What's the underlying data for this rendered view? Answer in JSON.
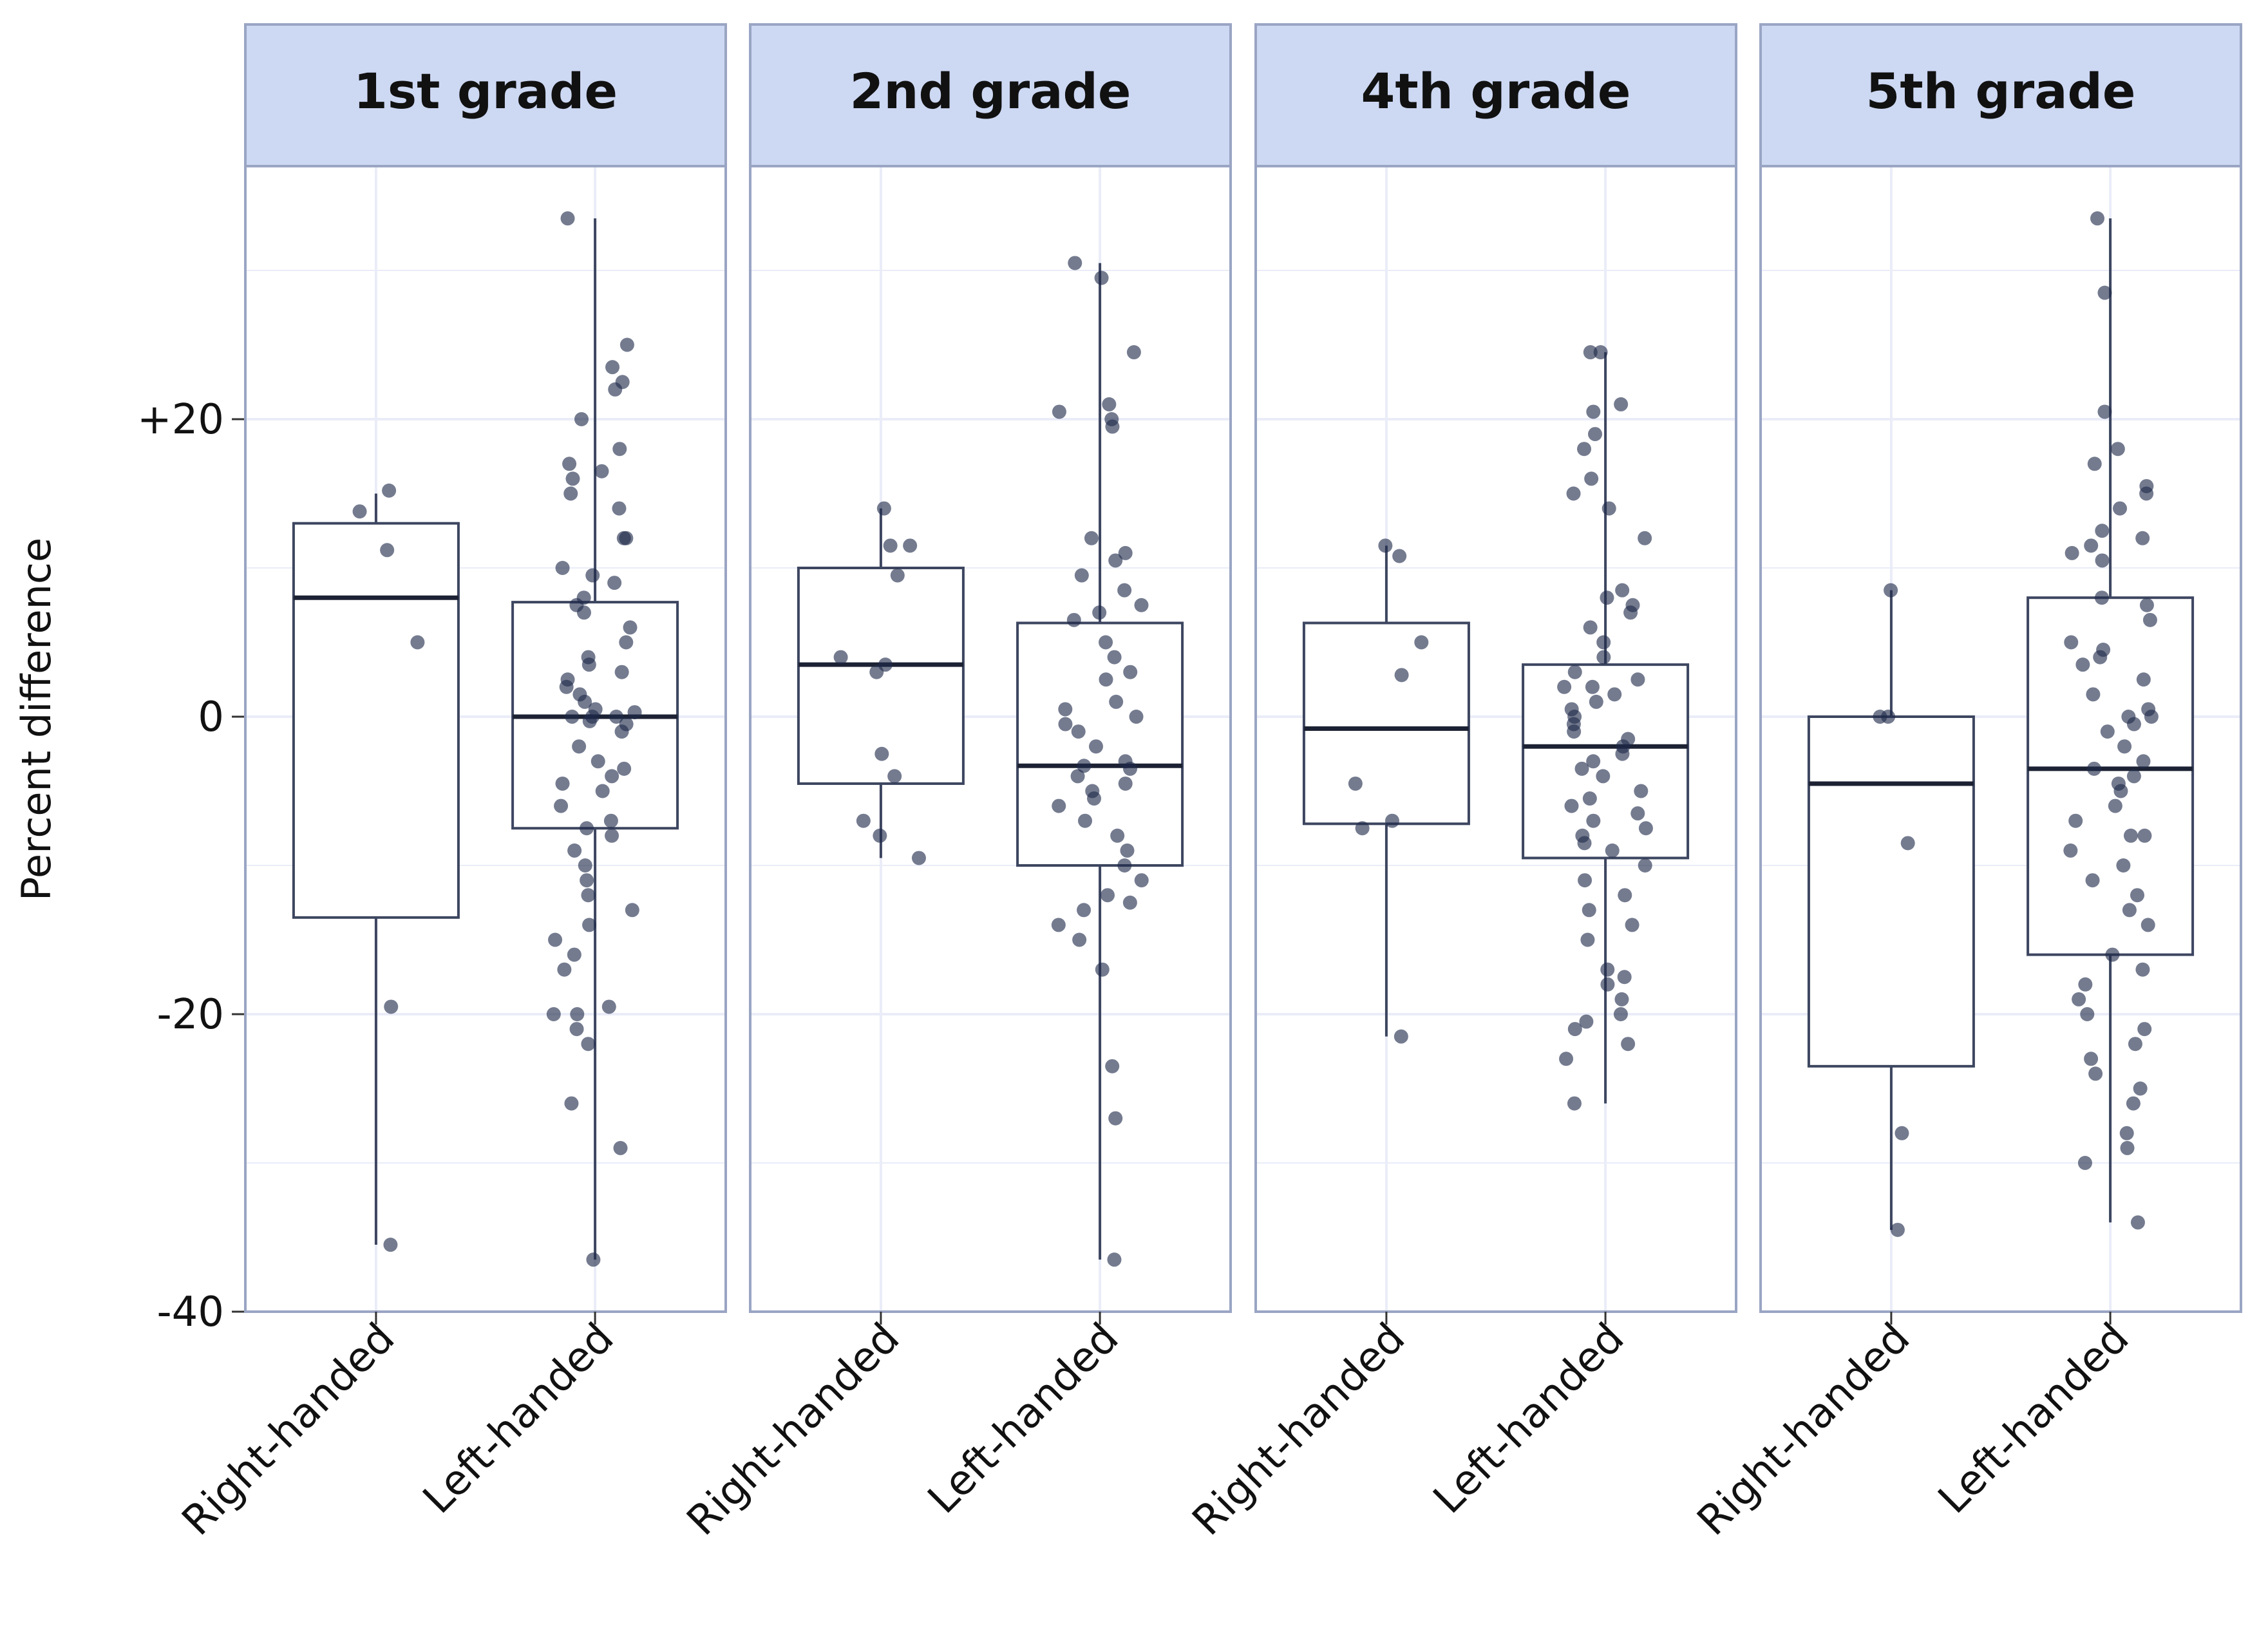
{
  "chart_data": {
    "type": "box",
    "ylabel": "Percent difference",
    "ylim": [
      -40,
      35
    ],
    "yticks": [
      {
        "value": 20,
        "label": "+20"
      },
      {
        "value": 0,
        "label": "0"
      },
      {
        "value": -20,
        "label": "-20"
      },
      {
        "value": -40,
        "label": "-40"
      }
    ],
    "groups": [
      "Right-handed",
      "Left-handed"
    ],
    "grid": true,
    "colors": {
      "strip_fill": "#cdd8f3",
      "border": "#9aa5c4",
      "grid": "#eaedf8",
      "box_line": "#3d4660",
      "point": "#1e2a4a"
    },
    "panels": [
      {
        "title": "1st grade",
        "boxes": [
          {
            "group": "Right-handed",
            "q1": -13.5,
            "median": 8,
            "q3": 13,
            "lower": -35.5,
            "upper": 15,
            "points": [
              15.2,
              13.8,
              11.2,
              5,
              -19.5,
              -35.5
            ]
          },
          {
            "group": "Left-handed",
            "q1": -7.5,
            "median": 0,
            "q3": 7.7,
            "lower": -36.5,
            "upper": 33.5,
            "points": [
              33.5,
              25,
              23.5,
              22.5,
              22,
              20,
              18,
              17,
              16.5,
              16,
              15,
              14,
              12,
              12,
              10,
              9.5,
              9,
              8,
              7.5,
              7,
              6,
              5,
              4,
              3.5,
              3,
              2.5,
              2,
              1.5,
              1,
              0.5,
              0.3,
              0,
              0,
              0,
              -0.3,
              -0.5,
              -1,
              -2,
              -3,
              -3.5,
              -4,
              -4.5,
              -5,
              -6,
              -7,
              -7.5,
              -8,
              -9,
              -10,
              -11,
              -12,
              -13,
              -14,
              -15,
              -16,
              -17,
              -19.5,
              -20,
              -20,
              -21,
              -22,
              -26,
              -29,
              -36.5
            ]
          }
        ]
      },
      {
        "title": "2nd grade",
        "boxes": [
          {
            "group": "Right-handed",
            "q1": -4.5,
            "median": 3.5,
            "q3": 10,
            "lower": -9.5,
            "upper": 14,
            "points": [
              14,
              11.5,
              11.5,
              9.5,
              4,
              3.5,
              3,
              -2.5,
              -4,
              -7,
              -8,
              -9.5
            ]
          },
          {
            "group": "Left-handed",
            "q1": -10,
            "median": -3.3,
            "q3": 6.3,
            "lower": -36.5,
            "upper": 30.5,
            "points": [
              30.5,
              29.5,
              24.5,
              21,
              20.5,
              20,
              19.5,
              12,
              11,
              10.5,
              9.5,
              8.5,
              7.5,
              7,
              6.5,
              5,
              4,
              3,
              2.5,
              1,
              0.5,
              0,
              -0.5,
              -1,
              -2,
              -3,
              -3.3,
              -3.5,
              -4,
              -4.5,
              -5,
              -5.5,
              -6,
              -7,
              -8,
              -9,
              -10,
              -11,
              -12,
              -12.5,
              -13,
              -14,
              -15,
              -17,
              -23.5,
              -27,
              -36.5
            ]
          }
        ]
      },
      {
        "title": "4th grade",
        "boxes": [
          {
            "group": "Right-handed",
            "q1": -7.2,
            "median": -0.8,
            "q3": 6.3,
            "lower": -21.5,
            "upper": 11.5,
            "points": [
              11.5,
              10.8,
              5,
              2.8,
              -4.5,
              -7,
              -7.5,
              -21.5
            ]
          },
          {
            "group": "Left-handed",
            "q1": -9.5,
            "median": -2,
            "q3": 3.5,
            "lower": -26,
            "upper": 24.5,
            "points": [
              24.5,
              24.5,
              21,
              20.5,
              19,
              18,
              16,
              15,
              14,
              12,
              8.5,
              8,
              7.5,
              7,
              6,
              5,
              4,
              3,
              2.5,
              2,
              2,
              1.5,
              1,
              0.5,
              0,
              -0.5,
              -1,
              -1.5,
              -2,
              -2.5,
              -3,
              -3.5,
              -4,
              -5,
              -5.5,
              -6,
              -6.5,
              -7,
              -7.5,
              -8,
              -8.5,
              -9,
              -10,
              -11,
              -12,
              -13,
              -14,
              -15,
              -17,
              -17.5,
              -18,
              -19,
              -20,
              -20.5,
              -21,
              -22,
              -23,
              -26
            ]
          }
        ]
      },
      {
        "title": "5th grade",
        "boxes": [
          {
            "group": "Right-handed",
            "q1": -23.5,
            "median": -4.5,
            "q3": 0,
            "lower": -34.5,
            "upper": 8.5,
            "points": [
              8.5,
              0,
              0,
              -8.5,
              -28,
              -34.5
            ]
          },
          {
            "group": "Left-handed",
            "q1": -16,
            "median": -3.5,
            "q3": 8,
            "lower": -34,
            "upper": 33.5,
            "points": [
              33.5,
              28.5,
              20.5,
              18,
              17,
              15.5,
              15,
              14,
              12.5,
              12,
              11.5,
              11,
              10.5,
              8,
              7.5,
              6.5,
              5,
              4.5,
              4,
              3.5,
              2.5,
              1.5,
              0.5,
              0,
              0,
              -0.5,
              -1,
              -2,
              -3,
              -3.5,
              -4,
              -4.5,
              -5,
              -6,
              -7,
              -8,
              -8,
              -9,
              -10,
              -11,
              -12,
              -13,
              -14,
              -16,
              -17,
              -18,
              -19,
              -20,
              -21,
              -22,
              -23,
              -24,
              -25,
              -26,
              -28,
              -29,
              -30,
              -34
            ]
          }
        ]
      }
    ]
  }
}
